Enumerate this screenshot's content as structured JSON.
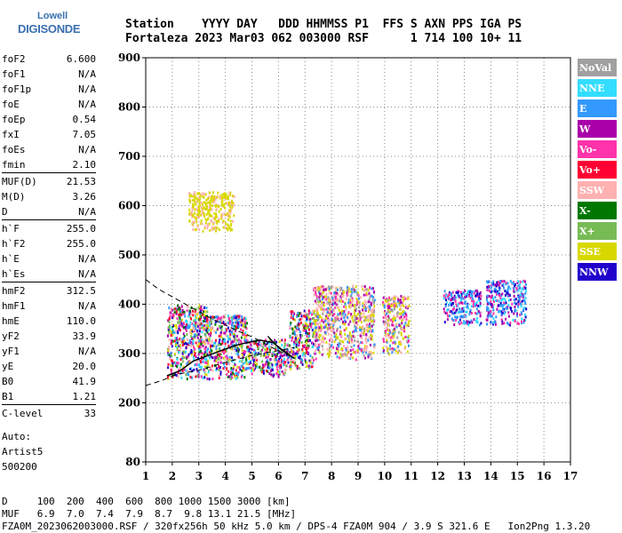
{
  "logo": {
    "line1": "Lowell",
    "line2": "DIGISONDE"
  },
  "header": {
    "labels_line": "Station    YYYY DAY   DDD HHMMSS P1  FFS S AXN PPS IGA PS",
    "values_line": "Fortaleza 2023 Mar03 062 003000 RSF      1 714 100 10+ 11"
  },
  "params": {
    "group1": [
      {
        "label": "foF2",
        "value": "6.600"
      },
      {
        "label": "foF1",
        "value": "N/A"
      },
      {
        "label": "foF1p",
        "value": "N/A"
      },
      {
        "label": "foE",
        "value": "N/A"
      },
      {
        "label": "foEp",
        "value": "0.54"
      },
      {
        "label": "fxI",
        "value": "7.05"
      },
      {
        "label": "foEs",
        "value": "N/A"
      },
      {
        "label": "fmin",
        "value": "2.10"
      }
    ],
    "group2": [
      {
        "label": "MUF(D)",
        "value": "21.53"
      },
      {
        "label": "M(D)",
        "value": "3.26"
      },
      {
        "label": "D",
        "value": "N/A"
      }
    ],
    "group3": [
      {
        "label": "h`F",
        "value": "255.0"
      },
      {
        "label": "h`F2",
        "value": "255.0"
      },
      {
        "label": "h`E",
        "value": "N/A"
      },
      {
        "label": "h`Es",
        "value": "N/A"
      }
    ],
    "group4": [
      {
        "label": "hmF2",
        "value": "312.5"
      },
      {
        "label": "hmF1",
        "value": "N/A"
      },
      {
        "label": "hmE",
        "value": "110.0"
      },
      {
        "label": "yF2",
        "value": "33.9"
      },
      {
        "label": "yF1",
        "value": "N/A"
      },
      {
        "label": "yE",
        "value": "20.0"
      },
      {
        "label": "B0",
        "value": "41.9"
      },
      {
        "label": "B1",
        "value": "1.21"
      }
    ],
    "group5": [
      {
        "label": "C-level",
        "value": "33"
      }
    ]
  },
  "auto": {
    "line1": "Auto:",
    "line2": "Artist5",
    "line3": "500200"
  },
  "bottom": {
    "line1": "D     100  200  400  600  800 1000 1500 3000 [km]",
    "line2": "MUF   6.9  7.0  7.4  7.9  8.7  9.8 13.1 21.5 [MHz]",
    "line3": "FZA0M_2023062003000.RSF / 320fx256h 50 kHz 5.0 km / DPS-4 FZA0M 904 / 3.9 S 321.6 E   Ion2Png 1.3.20"
  },
  "colors": {
    "NoVal": "#a0a0a0",
    "NNE": "#33ddff",
    "E": "#3399ff",
    "W": "#aa00aa",
    "Vo-": "#ff33aa",
    "Vo+": "#ff0033",
    "SSW": "#ffb0b0",
    "X-": "#007700",
    "X+": "#77bb55",
    "SSE": "#d8d800",
    "NNW": "#2200cc"
  },
  "chart_data": {
    "type": "scatter",
    "title": "",
    "xlabel": "",
    "ylabel": "",
    "xlim": [
      1,
      17
    ],
    "ylim": [
      80,
      900
    ],
    "x_ticks": [
      1,
      2,
      3,
      4,
      5,
      6,
      7,
      8,
      9,
      10,
      11,
      12,
      13,
      14,
      15,
      16,
      17
    ],
    "y_ticks": [
      80,
      200,
      300,
      400,
      500,
      600,
      700,
      800,
      900
    ],
    "legend": [
      "NoVal",
      "NNE",
      "E",
      "W",
      "Vo-",
      "Vo+",
      "SSW",
      "X-",
      "X+",
      "SSE",
      "NNW"
    ],
    "legend_placement": "right",
    "grid": true,
    "echo_clusters": [
      {
        "f": [
          1.8,
          3.3
        ],
        "h": [
          250,
          400
        ],
        "mix": "mixed"
      },
      {
        "f": [
          3.2,
          4.8
        ],
        "h": [
          250,
          380
        ],
        "mix": "mixed"
      },
      {
        "f": [
          4.8,
          6.4
        ],
        "h": [
          255,
          330
        ],
        "mix": "mixed"
      },
      {
        "f": [
          6.4,
          7.3
        ],
        "h": [
          270,
          390
        ],
        "mix": "mixed"
      },
      {
        "f": [
          7.3,
          9.6
        ],
        "h": [
          290,
          440
        ],
        "mix": "pink-yellow"
      },
      {
        "f": [
          9.9,
          10.9
        ],
        "h": [
          300,
          420
        ],
        "mix": "pink-yellow"
      },
      {
        "f": [
          12.2,
          13.6
        ],
        "h": [
          360,
          430
        ],
        "mix": "blue-pink"
      },
      {
        "f": [
          13.8,
          15.3
        ],
        "h": [
          360,
          450
        ],
        "mix": "blue-pink"
      },
      {
        "f": [
          2.6,
          4.3
        ],
        "h": [
          550,
          630
        ],
        "mix": "yellow"
      }
    ],
    "curve_solid": {
      "x": [
        1.8,
        2.3,
        2.8,
        3.3,
        3.8,
        4.3,
        4.8,
        5.3,
        5.8,
        6.2,
        6.6
      ],
      "y": [
        255,
        265,
        285,
        295,
        305,
        315,
        322,
        327,
        322,
        305,
        290
      ]
    },
    "curve_dashed_lower": {
      "x": [
        1.0,
        1.6,
        2.2,
        3.0,
        4.0,
        5.0,
        6.0,
        6.6
      ],
      "y": [
        235,
        245,
        258,
        266,
        282,
        296,
        306,
        312
      ]
    },
    "curve_dashed_upper": {
      "x": [
        1.0,
        1.5,
        2.0,
        2.5,
        3.0,
        3.5,
        4.0,
        4.5,
        5.0,
        5.5,
        6.0,
        6.4,
        6.6
      ],
      "y": [
        450,
        430,
        415,
        400,
        385,
        370,
        358,
        345,
        334,
        320,
        305,
        296,
        290
      ]
    },
    "solid_branch": {
      "x": [
        5.6,
        6.0,
        6.3,
        6.6
      ],
      "y": [
        335,
        312,
        300,
        290
      ]
    }
  }
}
